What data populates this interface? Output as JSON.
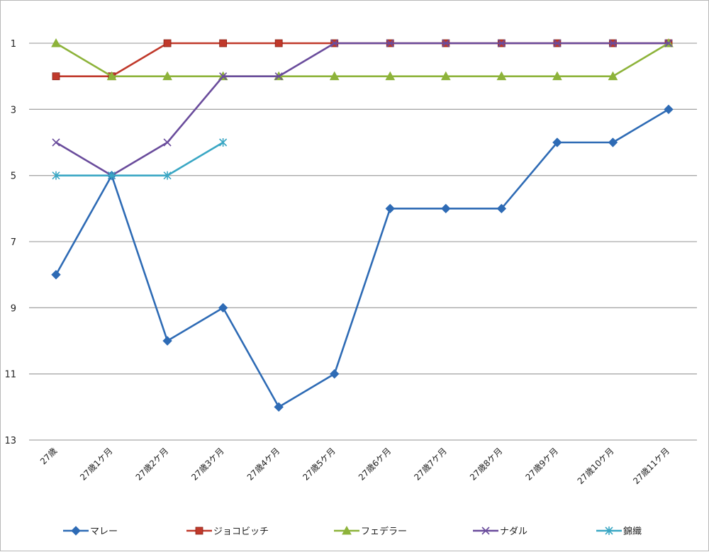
{
  "chart_data": {
    "type": "line",
    "title": "",
    "xlabel": "",
    "ylabel": "",
    "categories": [
      "27歳",
      "27歳1ケ月",
      "27歳2ケ月",
      "27歳3ケ月",
      "27歳4ケ月",
      "27歳5ケ月",
      "27歳6ケ月",
      "27歳7ケ月",
      "27歳8ケ月",
      "27歳9ケ月",
      "27歳10ケ月",
      "27歳11ケ月"
    ],
    "ylim": [
      1,
      13
    ],
    "y_inverted": true,
    "y_ticks": [
      1,
      3,
      5,
      7,
      9,
      11,
      13
    ],
    "grid": true,
    "legend_position": "bottom",
    "series": [
      {
        "name": "マレー",
        "color": "#2e6bb5",
        "marker": "diamond",
        "values": [
          8,
          5,
          10,
          9,
          12,
          11,
          6,
          6,
          6,
          4,
          4,
          3
        ]
      },
      {
        "name": "ジョコビッチ",
        "color": "#c0392b",
        "marker": "square",
        "values": [
          2,
          2,
          1,
          1,
          1,
          1,
          1,
          1,
          1,
          1,
          1,
          1
        ]
      },
      {
        "name": "フェデラー",
        "color": "#8db33a",
        "marker": "triangle",
        "values": [
          1,
          2,
          2,
          2,
          2,
          2,
          2,
          2,
          2,
          2,
          2,
          1
        ]
      },
      {
        "name": "ナダル",
        "color": "#6a4c9c",
        "marker": "x",
        "values": [
          4,
          5,
          4,
          2,
          2,
          1,
          1,
          1,
          1,
          1,
          1,
          1
        ]
      },
      {
        "name": "錦織",
        "color": "#3aa7c4",
        "marker": "star",
        "values": [
          5,
          5,
          5,
          4,
          null,
          null,
          null,
          null,
          null,
          null,
          null,
          null
        ]
      }
    ]
  }
}
